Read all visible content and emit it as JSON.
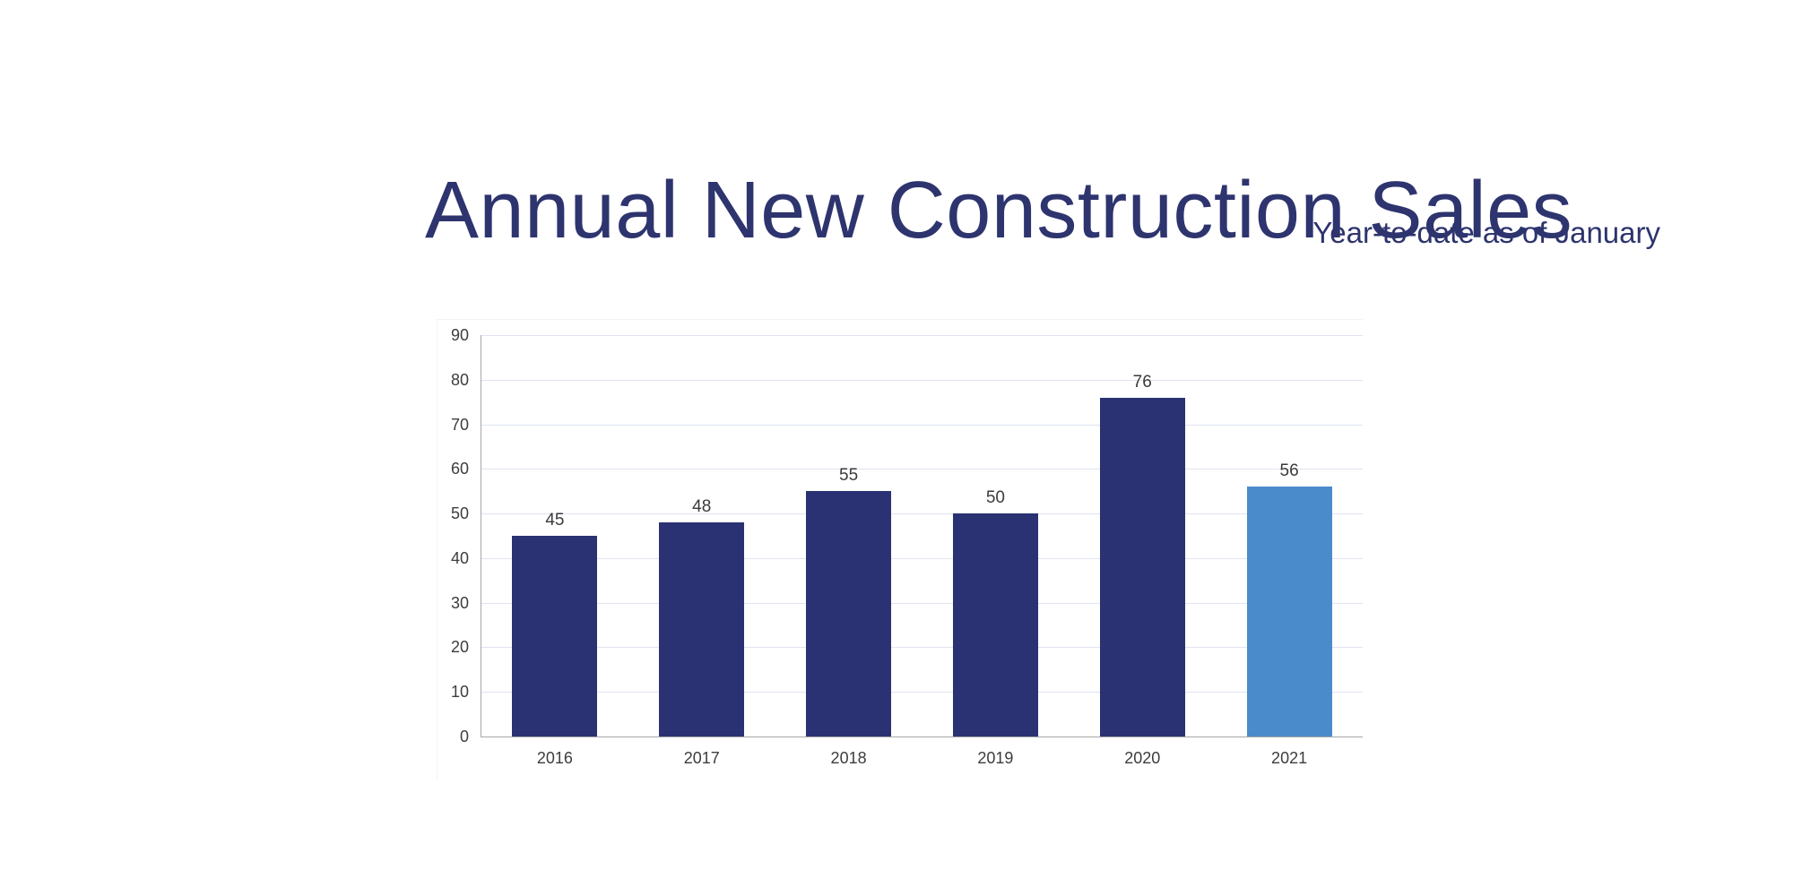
{
  "page": {
    "title": "Annual New Construction Sales",
    "subtitle": "Year-to-date as of January"
  },
  "chart_data": {
    "type": "bar",
    "title": "Annual New Construction Sales",
    "subtitle": "Year-to-date as of January",
    "categories": [
      "2016",
      "2017",
      "2018",
      "2019",
      "2020",
      "2021"
    ],
    "values": [
      45,
      48,
      55,
      50,
      76,
      56
    ],
    "value_labels": [
      "45",
      "48",
      "55",
      "50",
      "76",
      "56"
    ],
    "bar_colors": [
      "#2a3273",
      "#2a3273",
      "#2a3273",
      "#2a3273",
      "#2a3273",
      "#4a8ccb"
    ],
    "xlabel": "",
    "ylabel": "",
    "ylim": [
      0,
      90
    ],
    "y_ticks": [
      0,
      10,
      20,
      30,
      40,
      50,
      60,
      70,
      80,
      90
    ],
    "grid": true,
    "legend": "none",
    "colors": {
      "bar_default": "#2a3273",
      "bar_highlight": "#4a8ccb",
      "title_text": "#2d346e",
      "gridline": "#dfe4f1",
      "axis_line": "#a7a7a7",
      "tick_label": "#3d3d3d"
    }
  }
}
